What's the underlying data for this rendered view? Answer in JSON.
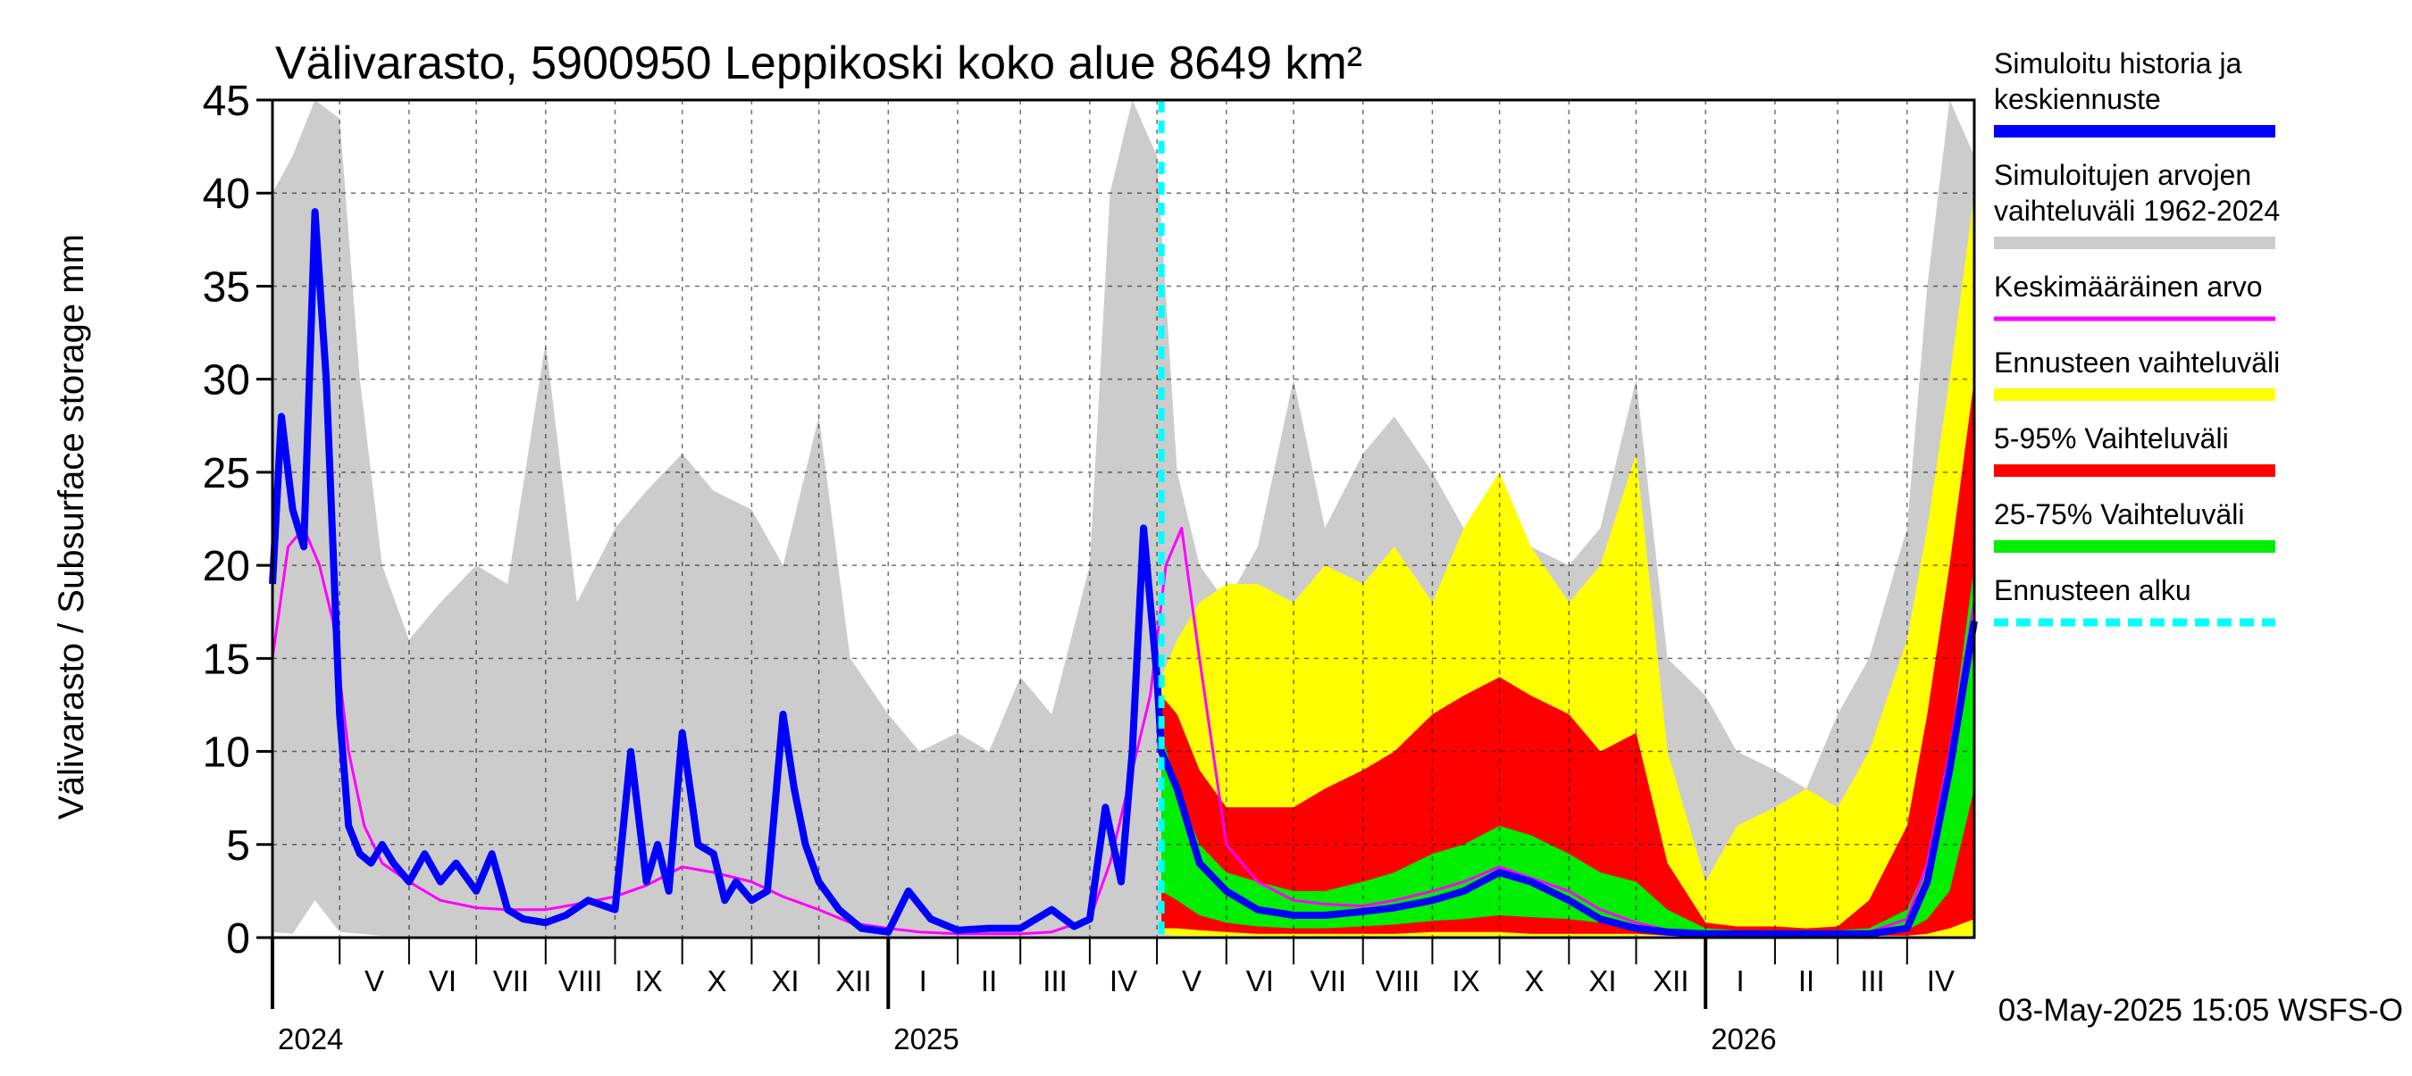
{
  "chart_data": {
    "type": "area",
    "title": "Välivarasto, 5900950 Leppikoski koko alue 8649 km²",
    "ylabel": "Välivarasto / Subsurface storage  mm",
    "ylim": [
      0,
      45
    ],
    "yticks": [
      0,
      5,
      10,
      15,
      20,
      25,
      30,
      35,
      40,
      45
    ],
    "xlim": [
      "2024-04-01",
      "2026-05-01"
    ],
    "grid": true,
    "legend_position": "right",
    "forecast_start": "2025-05-03",
    "footer": "03-May-2025 15:05 WSFS-O",
    "years": [
      {
        "label": "2024",
        "date": "2024-04-01"
      },
      {
        "label": "2025",
        "date": "2025-01-01"
      },
      {
        "label": "2026",
        "date": "2026-01-01"
      }
    ],
    "months": [
      {
        "label": "V",
        "date": "2024-05-01"
      },
      {
        "label": "VI",
        "date": "2024-06-01"
      },
      {
        "label": "VII",
        "date": "2024-07-01"
      },
      {
        "label": "VIII",
        "date": "2024-08-01"
      },
      {
        "label": "IX",
        "date": "2024-09-01"
      },
      {
        "label": "X",
        "date": "2024-10-01"
      },
      {
        "label": "XI",
        "date": "2024-11-01"
      },
      {
        "label": "XII",
        "date": "2024-12-01"
      },
      {
        "label": "I",
        "date": "2025-01-01"
      },
      {
        "label": "II",
        "date": "2025-02-01"
      },
      {
        "label": "III",
        "date": "2025-03-01"
      },
      {
        "label": "IV",
        "date": "2025-04-01"
      },
      {
        "label": "V",
        "date": "2025-05-01"
      },
      {
        "label": "VI",
        "date": "2025-06-01"
      },
      {
        "label": "VII",
        "date": "2025-07-01"
      },
      {
        "label": "VIII",
        "date": "2025-08-01"
      },
      {
        "label": "IX",
        "date": "2025-09-01"
      },
      {
        "label": "X",
        "date": "2025-10-01"
      },
      {
        "label": "XI",
        "date": "2025-11-01"
      },
      {
        "label": "XII",
        "date": "2025-12-01"
      },
      {
        "label": "I",
        "date": "2026-01-01"
      },
      {
        "label": "II",
        "date": "2026-02-01"
      },
      {
        "label": "III",
        "date": "2026-03-01"
      },
      {
        "label": "IV",
        "date": "2026-04-01"
      }
    ],
    "legend": [
      {
        "label": "Simuloitu historia ja keskiennuste",
        "color": "#0000ff",
        "style": "thick"
      },
      {
        "label": "Simuloitujen arvojen vaihteluväli 1962-2024",
        "color": "#cccccc",
        "style": "thick"
      },
      {
        "label": "Keskimääräinen arvo",
        "color": "#ff00ff",
        "style": "thin"
      },
      {
        "label": "Ennusteen vaihteluväli",
        "color": "#ffff00",
        "style": "thick"
      },
      {
        "label": "5-95% Vaihteluväli",
        "color": "#ff0000",
        "style": "thick"
      },
      {
        "label": "25-75% Vaihteluväli",
        "color": "#00ee00",
        "style": "thick"
      },
      {
        "label": "Ennusteen alku",
        "color": "#00ffff",
        "style": "dashed"
      }
    ],
    "series": [
      {
        "name": "Simuloitujen arvojen vaihteluväli 1962-2024",
        "kind": "band",
        "color": "#cccccc",
        "x": [
          "2024-04-01",
          "2024-04-10",
          "2024-04-20",
          "2024-05-01",
          "2024-05-10",
          "2024-05-20",
          "2024-06-01",
          "2024-06-15",
          "2024-07-01",
          "2024-07-15",
          "2024-08-01",
          "2024-08-15",
          "2024-09-01",
          "2024-09-15",
          "2024-10-01",
          "2024-10-15",
          "2024-11-01",
          "2024-11-15",
          "2024-12-01",
          "2024-12-15",
          "2025-01-01",
          "2025-01-15",
          "2025-02-01",
          "2025-02-15",
          "2025-03-01",
          "2025-03-15",
          "2025-04-01",
          "2025-04-10",
          "2025-04-20",
          "2025-05-01",
          "2025-05-10",
          "2025-05-20",
          "2025-06-01",
          "2025-06-15",
          "2025-07-01",
          "2025-07-15",
          "2025-08-01",
          "2025-08-15",
          "2025-09-01",
          "2025-09-15",
          "2025-10-01",
          "2025-10-15",
          "2025-11-01",
          "2025-11-15",
          "2025-12-01",
          "2025-12-15",
          "2026-01-01",
          "2026-01-15",
          "2026-02-01",
          "2026-02-15",
          "2026-03-01",
          "2026-03-15",
          "2026-04-01",
          "2026-04-10",
          "2026-04-20",
          "2026-05-01"
        ],
        "upper": [
          40,
          42,
          45,
          44,
          30,
          20,
          16,
          18,
          20,
          19,
          32,
          18,
          22,
          24,
          26,
          24,
          23,
          20,
          28,
          15,
          12,
          10,
          11,
          10,
          14,
          12,
          20,
          40,
          45,
          42,
          25,
          20,
          18,
          21,
          30,
          22,
          26,
          28,
          25,
          22,
          24,
          21,
          20,
          22,
          30,
          15,
          13,
          10,
          9,
          8,
          12,
          15,
          22,
          35,
          45,
          42
        ],
        "lower": [
          0.3,
          0.2,
          2,
          0.3,
          0.2,
          0.1,
          0.1,
          0.1,
          0.1,
          0.1,
          0.1,
          0.1,
          0.1,
          0.1,
          0.1,
          0.1,
          0.1,
          0.1,
          0.1,
          0.1,
          0.1,
          0.1,
          0.1,
          0.1,
          0.1,
          0.1,
          0.1,
          0.1,
          0.1,
          0.1,
          0.1,
          0.1,
          0.1,
          0.1,
          0.1,
          0.1,
          0.1,
          0.1,
          0.1,
          0.1,
          0.1,
          0.1,
          0.1,
          0.1,
          0.1,
          0.1,
          0.1,
          0.1,
          0.1,
          0.1,
          0.1,
          0.1,
          0.1,
          0.1,
          0.1,
          0.1
        ]
      },
      {
        "name": "Ennusteen vaihteluväli",
        "kind": "band",
        "color": "#ffff00",
        "x": [
          "2025-05-03",
          "2025-05-10",
          "2025-05-20",
          "2025-06-01",
          "2025-06-15",
          "2025-07-01",
          "2025-07-15",
          "2025-08-01",
          "2025-08-15",
          "2025-09-01",
          "2025-09-15",
          "2025-10-01",
          "2025-10-15",
          "2025-11-01",
          "2025-11-15",
          "2025-12-01",
          "2025-12-15",
          "2026-01-01",
          "2026-01-15",
          "2026-02-01",
          "2026-02-15",
          "2026-03-01",
          "2026-03-15",
          "2026-04-01",
          "2026-04-10",
          "2026-04-20",
          "2026-05-01"
        ],
        "upper": [
          14,
          16,
          18,
          19,
          19,
          18,
          20,
          19,
          21,
          18,
          22,
          25,
          21,
          18,
          20,
          26,
          10,
          3,
          6,
          7,
          8,
          7,
          10,
          16,
          22,
          30,
          40
        ],
        "lower": [
          0.2,
          0.1,
          0.1,
          0.1,
          0.1,
          0.1,
          0.1,
          0.1,
          0.1,
          0.1,
          0.1,
          0.1,
          0.1,
          0.1,
          0.1,
          0.1,
          0.1,
          0.1,
          0.1,
          0.1,
          0.1,
          0.1,
          0.1,
          0.1,
          0.1,
          0.1,
          0.1
        ]
      },
      {
        "name": "5-95% Vaihteluväli",
        "kind": "band",
        "color": "#ff0000",
        "x": [
          "2025-05-03",
          "2025-05-10",
          "2025-05-20",
          "2025-06-01",
          "2025-06-15",
          "2025-07-01",
          "2025-07-15",
          "2025-08-01",
          "2025-08-15",
          "2025-09-01",
          "2025-09-15",
          "2025-10-01",
          "2025-10-15",
          "2025-11-01",
          "2025-11-15",
          "2025-12-01",
          "2025-12-15",
          "2026-01-01",
          "2026-01-15",
          "2026-02-01",
          "2026-02-15",
          "2026-03-01",
          "2026-03-15",
          "2026-04-01",
          "2026-04-10",
          "2026-04-20",
          "2026-05-01"
        ],
        "upper": [
          13,
          12,
          9,
          7,
          7,
          7,
          8,
          9,
          10,
          12,
          13,
          14,
          13,
          12,
          10,
          11,
          4,
          0.8,
          0.6,
          0.6,
          0.5,
          0.6,
          2,
          6,
          12,
          20,
          30
        ],
        "lower": [
          0.5,
          0.5,
          0.4,
          0.3,
          0.2,
          0.2,
          0.2,
          0.2,
          0.2,
          0.3,
          0.3,
          0.3,
          0.2,
          0.2,
          0.2,
          0.2,
          0.1,
          0.1,
          0.1,
          0.1,
          0.1,
          0.1,
          0.1,
          0.1,
          0.2,
          0.5,
          1
        ]
      },
      {
        "name": "25-75% Vaihteluväli",
        "kind": "band",
        "color": "#00ee00",
        "x": [
          "2025-05-03",
          "2025-05-10",
          "2025-05-20",
          "2025-06-01",
          "2025-06-15",
          "2025-07-01",
          "2025-07-15",
          "2025-08-01",
          "2025-08-15",
          "2025-09-01",
          "2025-09-15",
          "2025-10-01",
          "2025-10-15",
          "2025-11-01",
          "2025-11-15",
          "2025-12-01",
          "2025-12-15",
          "2026-01-01",
          "2026-01-15",
          "2026-02-01",
          "2026-02-15",
          "2026-03-01",
          "2026-03-15",
          "2026-04-01",
          "2026-04-10",
          "2026-04-20",
          "2026-05-01"
        ],
        "upper": [
          11,
          8,
          5,
          3.5,
          3,
          2.5,
          2.5,
          3,
          3.5,
          4.5,
          5,
          6,
          5.5,
          4.5,
          3.5,
          3,
          1.5,
          0.5,
          0.4,
          0.4,
          0.4,
          0.4,
          0.5,
          1.5,
          4,
          10,
          20
        ],
        "lower": [
          2.5,
          2,
          1.2,
          0.8,
          0.6,
          0.5,
          0.5,
          0.6,
          0.7,
          0.9,
          1,
          1.2,
          1.1,
          1,
          0.8,
          0.7,
          0.3,
          0.2,
          0.2,
          0.2,
          0.2,
          0.2,
          0.2,
          0.4,
          1,
          2.5,
          8
        ]
      },
      {
        "name": "Keskimääräinen arvo",
        "kind": "line",
        "color": "#ff00ff",
        "width": 3,
        "x": [
          "2024-04-01",
          "2024-04-08",
          "2024-04-15",
          "2024-04-22",
          "2024-04-28",
          "2024-05-05",
          "2024-05-12",
          "2024-05-20",
          "2024-06-01",
          "2024-06-15",
          "2024-07-01",
          "2024-07-15",
          "2024-08-01",
          "2024-08-15",
          "2024-09-01",
          "2024-09-15",
          "2024-10-01",
          "2024-10-15",
          "2024-11-01",
          "2024-11-15",
          "2024-12-01",
          "2024-12-15",
          "2025-01-01",
          "2025-01-15",
          "2025-02-01",
          "2025-02-15",
          "2025-03-01",
          "2025-03-15",
          "2025-04-01",
          "2025-04-10",
          "2025-04-20",
          "2025-04-28",
          "2025-05-05",
          "2025-05-12",
          "2025-05-20",
          "2025-06-01",
          "2025-06-15",
          "2025-07-01",
          "2025-07-15",
          "2025-08-01",
          "2025-08-15",
          "2025-09-01",
          "2025-09-15",
          "2025-10-01",
          "2025-10-15",
          "2025-11-01",
          "2025-11-15",
          "2025-12-01",
          "2025-12-15",
          "2026-01-01",
          "2026-01-15",
          "2026-02-01",
          "2026-02-15",
          "2026-03-01",
          "2026-03-15",
          "2026-04-01",
          "2026-04-10",
          "2026-04-20",
          "2026-05-01"
        ],
        "values": [
          15,
          21,
          22,
          20,
          17,
          10,
          6,
          4,
          3,
          2,
          1.6,
          1.5,
          1.5,
          1.8,
          2.2,
          2.8,
          3.8,
          3.5,
          3.0,
          2.2,
          1.5,
          0.8,
          0.5,
          0.3,
          0.2,
          0.2,
          0.2,
          0.3,
          1,
          4,
          9,
          13,
          20,
          22,
          15,
          5,
          3,
          2,
          1.8,
          1.7,
          2,
          2.5,
          3,
          3.8,
          3.2,
          2.5,
          1.5,
          0.8,
          0.4,
          0.3,
          0.2,
          0.2,
          0.2,
          0.2,
          0.3,
          1,
          4,
          10,
          18
        ]
      },
      {
        "name": "Simuloitu historia ja keskiennuste",
        "kind": "line",
        "color": "#0000ff",
        "width": 8,
        "x": [
          "2024-04-01",
          "2024-04-05",
          "2024-04-10",
          "2024-04-15",
          "2024-04-20",
          "2024-04-25",
          "2024-05-01",
          "2024-05-05",
          "2024-05-10",
          "2024-05-15",
          "2024-05-20",
          "2024-05-25",
          "2024-06-01",
          "2024-06-08",
          "2024-06-15",
          "2024-06-22",
          "2024-07-01",
          "2024-07-08",
          "2024-07-15",
          "2024-07-22",
          "2024-08-01",
          "2024-08-10",
          "2024-08-20",
          "2024-09-01",
          "2024-09-08",
          "2024-09-15",
          "2024-09-20",
          "2024-09-25",
          "2024-10-01",
          "2024-10-08",
          "2024-10-15",
          "2024-10-20",
          "2024-10-25",
          "2024-11-01",
          "2024-11-08",
          "2024-11-15",
          "2024-11-20",
          "2024-11-25",
          "2024-12-01",
          "2024-12-10",
          "2024-12-20",
          "2025-01-01",
          "2025-01-10",
          "2025-01-20",
          "2025-02-01",
          "2025-02-15",
          "2025-03-01",
          "2025-03-15",
          "2025-03-25",
          "2025-04-01",
          "2025-04-08",
          "2025-04-15",
          "2025-04-20",
          "2025-04-25",
          "2025-05-01",
          "2025-05-03",
          "2025-05-10",
          "2025-05-20",
          "2025-06-01",
          "2025-06-15",
          "2025-07-01",
          "2025-07-15",
          "2025-08-01",
          "2025-08-15",
          "2025-09-01",
          "2025-09-15",
          "2025-10-01",
          "2025-10-15",
          "2025-11-01",
          "2025-11-15",
          "2025-12-01",
          "2025-12-15",
          "2026-01-01",
          "2026-01-15",
          "2026-02-01",
          "2026-02-15",
          "2026-03-01",
          "2026-03-15",
          "2026-04-01",
          "2026-04-10",
          "2026-04-20",
          "2026-05-01"
        ],
        "values": [
          19,
          28,
          23,
          21,
          39,
          30,
          12,
          6,
          4.5,
          4,
          5,
          4,
          3,
          4.5,
          3,
          4,
          2.5,
          4.5,
          1.5,
          1,
          0.8,
          1.2,
          2,
          1.5,
          10,
          3,
          5,
          2.5,
          11,
          5,
          4.5,
          2,
          3,
          2,
          2.5,
          12,
          8,
          5,
          3,
          1.5,
          0.5,
          0.3,
          2.5,
          1,
          0.4,
          0.5,
          0.5,
          1.5,
          0.6,
          1,
          7,
          3,
          10,
          22,
          14,
          10,
          8,
          4,
          2.5,
          1.5,
          1.2,
          1.2,
          1.4,
          1.6,
          2,
          2.5,
          3.5,
          3,
          2,
          1,
          0.5,
          0.3,
          0.2,
          0.2,
          0.2,
          0.2,
          0.2,
          0.2,
          0.5,
          3,
          9,
          17
        ]
      }
    ]
  }
}
